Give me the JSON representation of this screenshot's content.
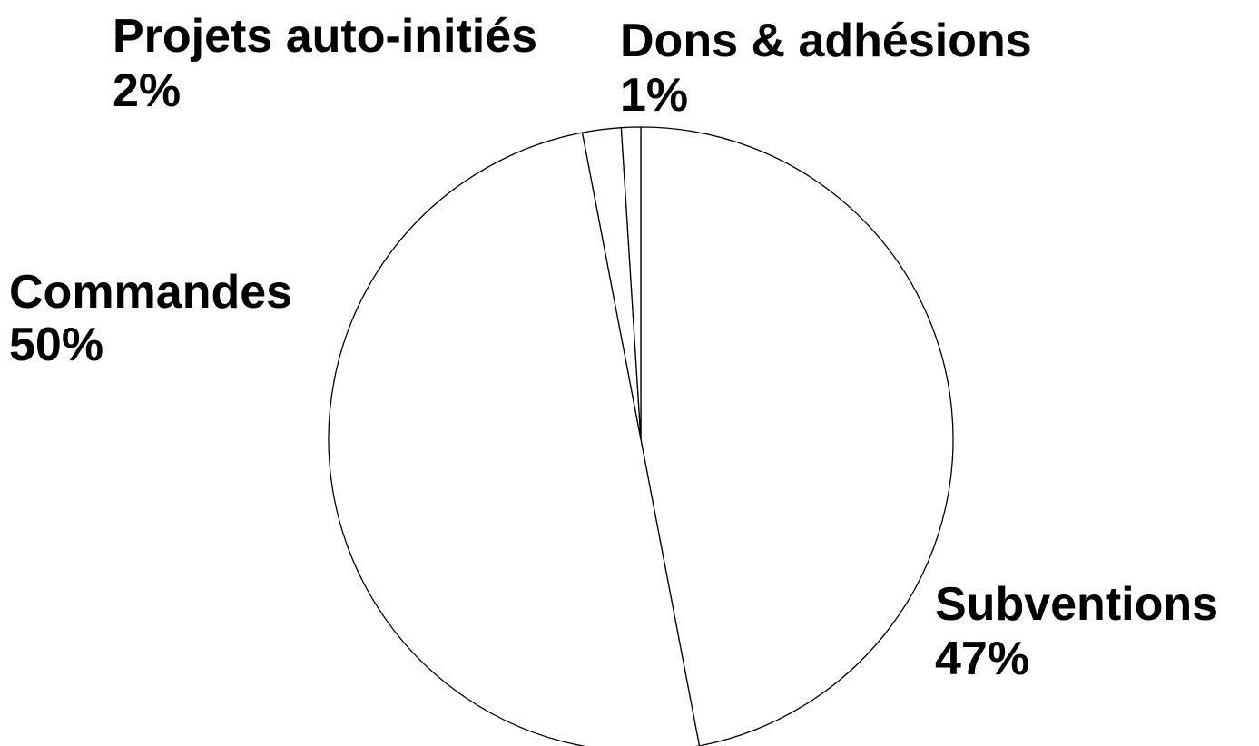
{
  "chart_data": {
    "type": "pie",
    "categories": [
      "Subventions",
      "Commandes",
      "Projets auto-initiés",
      "Dons & adhésions"
    ],
    "values": [
      47,
      50,
      2,
      1
    ],
    "value_labels": [
      "47%",
      "50%",
      "2%",
      "1%"
    ],
    "title": "",
    "legend": "none",
    "colors": {
      "fill": "#ffffff",
      "stroke": "#000000",
      "text": "#000000"
    }
  }
}
